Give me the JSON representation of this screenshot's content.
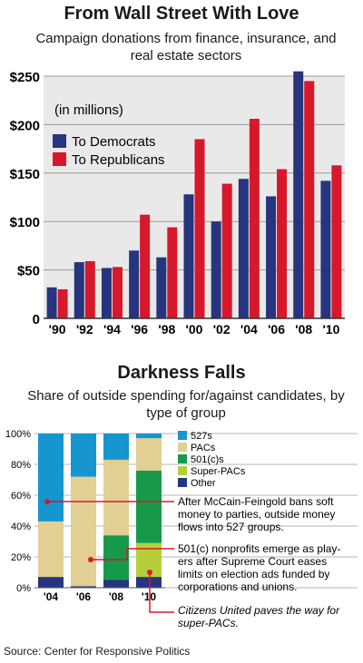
{
  "chart_data": [
    {
      "type": "bar",
      "title": "From Wall Street With Love",
      "subtitle": "Campaign donations from finance, insurance, and real estate sectors",
      "unit_note": "(in millions)",
      "categories": [
        "'90",
        "'92",
        "'94",
        "'96",
        "'98",
        "'00",
        "'02",
        "'04",
        "'06",
        "'08",
        "'10"
      ],
      "series": [
        {
          "name": "To Democrats",
          "color": "#27357f",
          "values": [
            32,
            58,
            52,
            70,
            63,
            128,
            100,
            144,
            126,
            255,
            142
          ]
        },
        {
          "name": "To Republicans",
          "color": "#d7182a",
          "values": [
            30,
            59,
            53,
            107,
            94,
            185,
            139,
            206,
            154,
            245,
            158
          ]
        }
      ],
      "ylim": [
        0,
        250
      ],
      "yticks": [
        "0",
        "$50",
        "$100",
        "$150",
        "$200",
        "$250"
      ],
      "grid": true,
      "legend": "upper-left"
    },
    {
      "type": "bar",
      "stacked": true,
      "title": "Darkness Falls",
      "subtitle": "Share of outside spending for/against candidates, by type of group",
      "categories": [
        "'04",
        "'06",
        "'08",
        "'10"
      ],
      "series": [
        {
          "name": "Other",
          "color": "#27357f",
          "values": [
            7,
            1,
            5,
            7
          ]
        },
        {
          "name": "Super-PACs",
          "color": "#b5cf3a",
          "values": [
            0,
            0,
            0,
            22
          ]
        },
        {
          "name": "501(c)s",
          "color": "#169a4a",
          "values": [
            0,
            0,
            29,
            47
          ]
        },
        {
          "name": "PACs",
          "color": "#e2cf94",
          "values": [
            36,
            71,
            49,
            21
          ]
        },
        {
          "name": "527s",
          "color": "#1795cf",
          "values": [
            57,
            28,
            17,
            3
          ]
        }
      ],
      "ylim": [
        0,
        100
      ],
      "yticks": [
        "0%",
        "20%",
        "40%",
        "60%",
        "80%",
        "100%"
      ],
      "legend": "top-right",
      "annotations": [
        {
          "text": "After McCain-Feingold bans soft money to parties, outside money flows into 527 groups."
        },
        {
          "text": "501(c) nonprofits emerge as players after Supreme Court eases limits on election ads funded by corporations and unions."
        },
        {
          "text": "Citizens United paves the way for super-PACs."
        }
      ]
    }
  ],
  "source": "Source: Center for Responsive Politics"
}
